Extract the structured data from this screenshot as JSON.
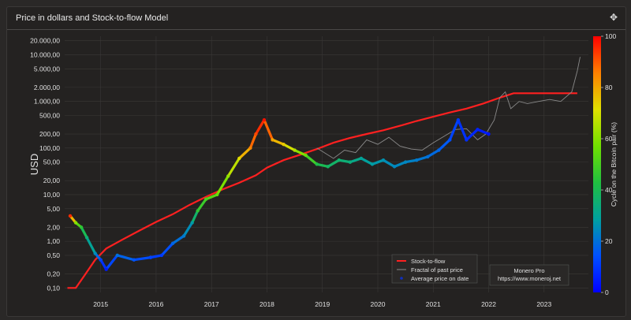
{
  "panel": {
    "title": "Price in dollars and Stock-to-flow Model",
    "move_icon": "move-arrows-icon"
  },
  "colors": {
    "background": "#242221",
    "stock_to_flow": "#ff2020",
    "fractal": "#8a8a8a",
    "grid": "#3a3837",
    "colorbar_stops": [
      "#0000ff",
      "#0050ff",
      "#00a0a0",
      "#20c040",
      "#70e000",
      "#e0e000",
      "#ff8000",
      "#ff0000"
    ]
  },
  "watermark": {
    "line1": "Monero Pro",
    "line2": "https://www.moneroj.net"
  },
  "chart_data": {
    "type": "line",
    "title": "",
    "ylabel": "USD",
    "y_scale": "log",
    "ylim": [
      0.08,
      25000
    ],
    "xlim": [
      2014.35,
      2023.8
    ],
    "x_ticks": [
      "2015",
      "2016",
      "2017",
      "2018",
      "2019",
      "2020",
      "2021",
      "2022",
      "2023"
    ],
    "y_ticks": [
      "20.000,00",
      "10.000,00",
      "5.000,00",
      "2.000,00",
      "1.000,00",
      "500,00",
      "200,00",
      "100,00",
      "50,00",
      "20,00",
      "10,00",
      "5,00",
      "2,00",
      "1,00",
      "0,50",
      "0,20",
      "0,10"
    ],
    "y_tick_values": [
      20000,
      10000,
      5000,
      2000,
      1000,
      500,
      200,
      100,
      50,
      20,
      10,
      5,
      2,
      1,
      0.5,
      0.2,
      0.1
    ],
    "colorbar": {
      "label": "Cycle on the Bitcoin pair (%)",
      "ticks": [
        "0",
        "20",
        "40",
        "60",
        "80",
        "100"
      ],
      "range": [
        0,
        100
      ]
    },
    "legend": {
      "placement": "bottom-right",
      "entries": [
        "Stock-to-flow",
        "Fractal of past price",
        "Average price on date"
      ]
    },
    "series": [
      {
        "name": "Stock-to-flow",
        "style": "line",
        "points": [
          [
            2014.4,
            0.1
          ],
          [
            2014.55,
            0.1
          ],
          [
            2014.7,
            0.18
          ],
          [
            2014.9,
            0.4
          ],
          [
            2015.1,
            0.7
          ],
          [
            2015.4,
            1.1
          ],
          [
            2015.7,
            1.7
          ],
          [
            2016.0,
            2.6
          ],
          [
            2016.3,
            3.8
          ],
          [
            2016.6,
            6
          ],
          [
            2016.9,
            9
          ],
          [
            2017.2,
            13
          ],
          [
            2017.5,
            18
          ],
          [
            2017.8,
            26
          ],
          [
            2018.0,
            38
          ],
          [
            2018.3,
            55
          ],
          [
            2018.6,
            72
          ],
          [
            2018.9,
            95
          ],
          [
            2019.2,
            130
          ],
          [
            2019.5,
            165
          ],
          [
            2019.8,
            200
          ],
          [
            2020.1,
            240
          ],
          [
            2020.4,
            300
          ],
          [
            2020.7,
            380
          ],
          [
            2021.0,
            470
          ],
          [
            2021.3,
            580
          ],
          [
            2021.6,
            700
          ],
          [
            2021.9,
            900
          ],
          [
            2022.2,
            1200
          ],
          [
            2022.45,
            1500
          ],
          [
            2022.8,
            1500
          ],
          [
            2023.6,
            1500
          ]
        ]
      },
      {
        "name": "Fractal of past price",
        "style": "line",
        "points": [
          [
            2018.9,
            100
          ],
          [
            2019.2,
            60
          ],
          [
            2019.4,
            90
          ],
          [
            2019.6,
            80
          ],
          [
            2019.8,
            150
          ],
          [
            2020.0,
            120
          ],
          [
            2020.2,
            170
          ],
          [
            2020.4,
            110
          ],
          [
            2020.6,
            95
          ],
          [
            2020.8,
            90
          ],
          [
            2021.0,
            130
          ],
          [
            2021.2,
            180
          ],
          [
            2021.4,
            250
          ],
          [
            2021.6,
            260
          ],
          [
            2021.8,
            150
          ],
          [
            2021.95,
            200
          ],
          [
            2022.1,
            400
          ],
          [
            2022.2,
            1200
          ],
          [
            2022.3,
            1600
          ],
          [
            2022.4,
            700
          ],
          [
            2022.55,
            1000
          ],
          [
            2022.7,
            900
          ],
          [
            2022.9,
            1000
          ],
          [
            2023.1,
            1100
          ],
          [
            2023.3,
            1000
          ],
          [
            2023.5,
            1600
          ],
          [
            2023.6,
            4500
          ],
          [
            2023.65,
            9000
          ]
        ]
      },
      {
        "name": "Average price on date",
        "style": "scatter",
        "points": [
          [
            2014.45,
            3.5,
            95
          ],
          [
            2014.55,
            2.5,
            60
          ],
          [
            2014.65,
            2.0,
            45
          ],
          [
            2014.75,
            1.2,
            35
          ],
          [
            2014.9,
            0.55,
            25
          ],
          [
            2015.0,
            0.4,
            12
          ],
          [
            2015.1,
            0.25,
            5
          ],
          [
            2015.3,
            0.5,
            20
          ],
          [
            2015.6,
            0.4,
            15
          ],
          [
            2015.9,
            0.45,
            12
          ],
          [
            2016.1,
            0.5,
            10
          ],
          [
            2016.3,
            0.9,
            18
          ],
          [
            2016.5,
            1.3,
            22
          ],
          [
            2016.65,
            2.5,
            28
          ],
          [
            2016.75,
            4.5,
            45
          ],
          [
            2016.9,
            8,
            50
          ],
          [
            2017.1,
            10,
            55
          ],
          [
            2017.3,
            25,
            62
          ],
          [
            2017.5,
            60,
            72
          ],
          [
            2017.7,
            100,
            85
          ],
          [
            2017.8,
            200,
            92
          ],
          [
            2017.95,
            400,
            98
          ],
          [
            2018.1,
            150,
            80
          ],
          [
            2018.3,
            120,
            75
          ],
          [
            2018.5,
            90,
            65
          ],
          [
            2018.7,
            70,
            55
          ],
          [
            2018.9,
            45,
            42
          ],
          [
            2019.1,
            40,
            38
          ],
          [
            2019.3,
            55,
            36
          ],
          [
            2019.5,
            50,
            34
          ],
          [
            2019.7,
            60,
            30
          ],
          [
            2019.9,
            45,
            28
          ],
          [
            2020.1,
            55,
            26
          ],
          [
            2020.3,
            40,
            24
          ],
          [
            2020.5,
            50,
            24
          ],
          [
            2020.7,
            55,
            22
          ],
          [
            2020.9,
            65,
            20
          ],
          [
            2021.1,
            90,
            18
          ],
          [
            2021.3,
            150,
            14
          ],
          [
            2021.45,
            400,
            10
          ],
          [
            2021.6,
            150,
            8
          ],
          [
            2021.8,
            250,
            6
          ],
          [
            2022.0,
            200,
            4
          ]
        ]
      }
    ]
  }
}
